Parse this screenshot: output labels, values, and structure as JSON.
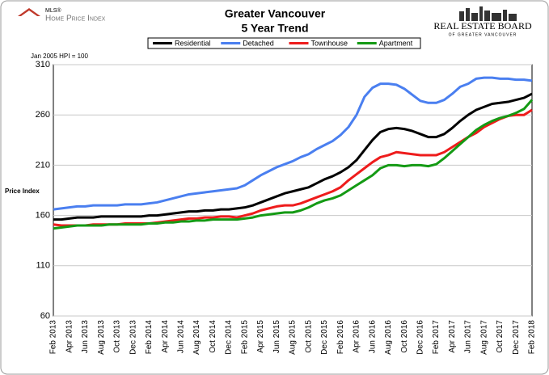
{
  "logo_left": {
    "top": "MLS®",
    "bottom": "Home Price Index"
  },
  "logo_right": {
    "top": "Real Estate Board",
    "bottom": "of Greater Vancouver"
  },
  "chart_data": {
    "type": "line",
    "title": "Greater Vancouver",
    "subtitle": "5 Year Trend",
    "note": "Jan 2005 HPI = 100",
    "y_label": "Price Index",
    "legend": "top",
    "grid": true,
    "ylim": [
      60,
      310
    ],
    "yticks": [
      60,
      110,
      160,
      210,
      260,
      310
    ],
    "categories": [
      "Feb 2013",
      null,
      "Apr 2013",
      null,
      "Jun 2013",
      null,
      "Aug 2013",
      null,
      "Oct 2013",
      null,
      "Dec 2013",
      null,
      "Feb 2014",
      null,
      "Apr 2014",
      null,
      "Jun 2014",
      null,
      "Aug 2014",
      null,
      "Oct 2014",
      null,
      "Dec 2014",
      null,
      "Feb 2015",
      null,
      "Apr 2015",
      null,
      "Jun 2015",
      null,
      "Aug 2015",
      null,
      "Oct 2015",
      null,
      "Dec 2015",
      null,
      "Feb 2016",
      null,
      "Apr 2016",
      null,
      "Jun 2016",
      null,
      "Aug 2016",
      null,
      "Oct 2016",
      null,
      "Dec 2016",
      null,
      "Feb 2017",
      null,
      "Apr 2017",
      null,
      "Jun 2017",
      null,
      "Aug 2017",
      null,
      "Oct 2017",
      null,
      "Dec 2017",
      null,
      "Feb 2018"
    ],
    "series": [
      {
        "name": "Residential",
        "color": "#000000",
        "values": [
          156,
          156,
          157,
          158,
          158,
          158,
          159,
          159,
          159,
          159,
          159,
          159,
          160,
          160,
          161,
          162,
          163,
          164,
          164,
          165,
          165,
          166,
          166,
          167,
          168,
          170,
          173,
          176,
          179,
          182,
          184,
          186,
          188,
          192,
          196,
          199,
          203,
          208,
          215,
          225,
          235,
          243,
          246,
          247,
          246,
          244,
          241,
          238,
          238,
          241,
          247,
          254,
          260,
          265,
          268,
          271,
          272,
          273,
          275,
          277,
          281
        ]
      },
      {
        "name": "Detached",
        "color": "#4a7ff0",
        "values": [
          166,
          167,
          168,
          169,
          169,
          170,
          170,
          170,
          170,
          171,
          171,
          171,
          172,
          173,
          175,
          177,
          179,
          181,
          182,
          183,
          184,
          185,
          186,
          187,
          190,
          195,
          200,
          204,
          208,
          211,
          214,
          218,
          221,
          226,
          230,
          234,
          240,
          248,
          260,
          278,
          287,
          291,
          291,
          290,
          286,
          280,
          274,
          272,
          272,
          275,
          281,
          288,
          291,
          296,
          297,
          297,
          296,
          296,
          295,
          295,
          294
        ]
      },
      {
        "name": "Townhouse",
        "color": "#ee1c1c",
        "values": [
          151,
          150,
          150,
          150,
          150,
          151,
          151,
          151,
          151,
          152,
          152,
          152,
          152,
          153,
          154,
          155,
          156,
          157,
          157,
          158,
          158,
          159,
          159,
          158,
          160,
          162,
          165,
          167,
          169,
          170,
          170,
          172,
          175,
          178,
          181,
          184,
          188,
          195,
          201,
          207,
          213,
          218,
          220,
          223,
          222,
          221,
          220,
          220,
          220,
          223,
          228,
          233,
          238,
          242,
          248,
          252,
          256,
          259,
          260,
          260,
          265
        ]
      },
      {
        "name": "Apartment",
        "color": "#149a14",
        "values": [
          147,
          148,
          149,
          150,
          150,
          150,
          150,
          151,
          151,
          151,
          151,
          151,
          152,
          152,
          153,
          153,
          154,
          154,
          155,
          155,
          156,
          156,
          156,
          156,
          157,
          158,
          160,
          161,
          162,
          163,
          163,
          165,
          168,
          172,
          175,
          177,
          180,
          185,
          190,
          195,
          200,
          207,
          210,
          210,
          209,
          210,
          210,
          209,
          211,
          217,
          224,
          231,
          238,
          245,
          250,
          254,
          257,
          259,
          262,
          266,
          275
        ]
      }
    ]
  }
}
